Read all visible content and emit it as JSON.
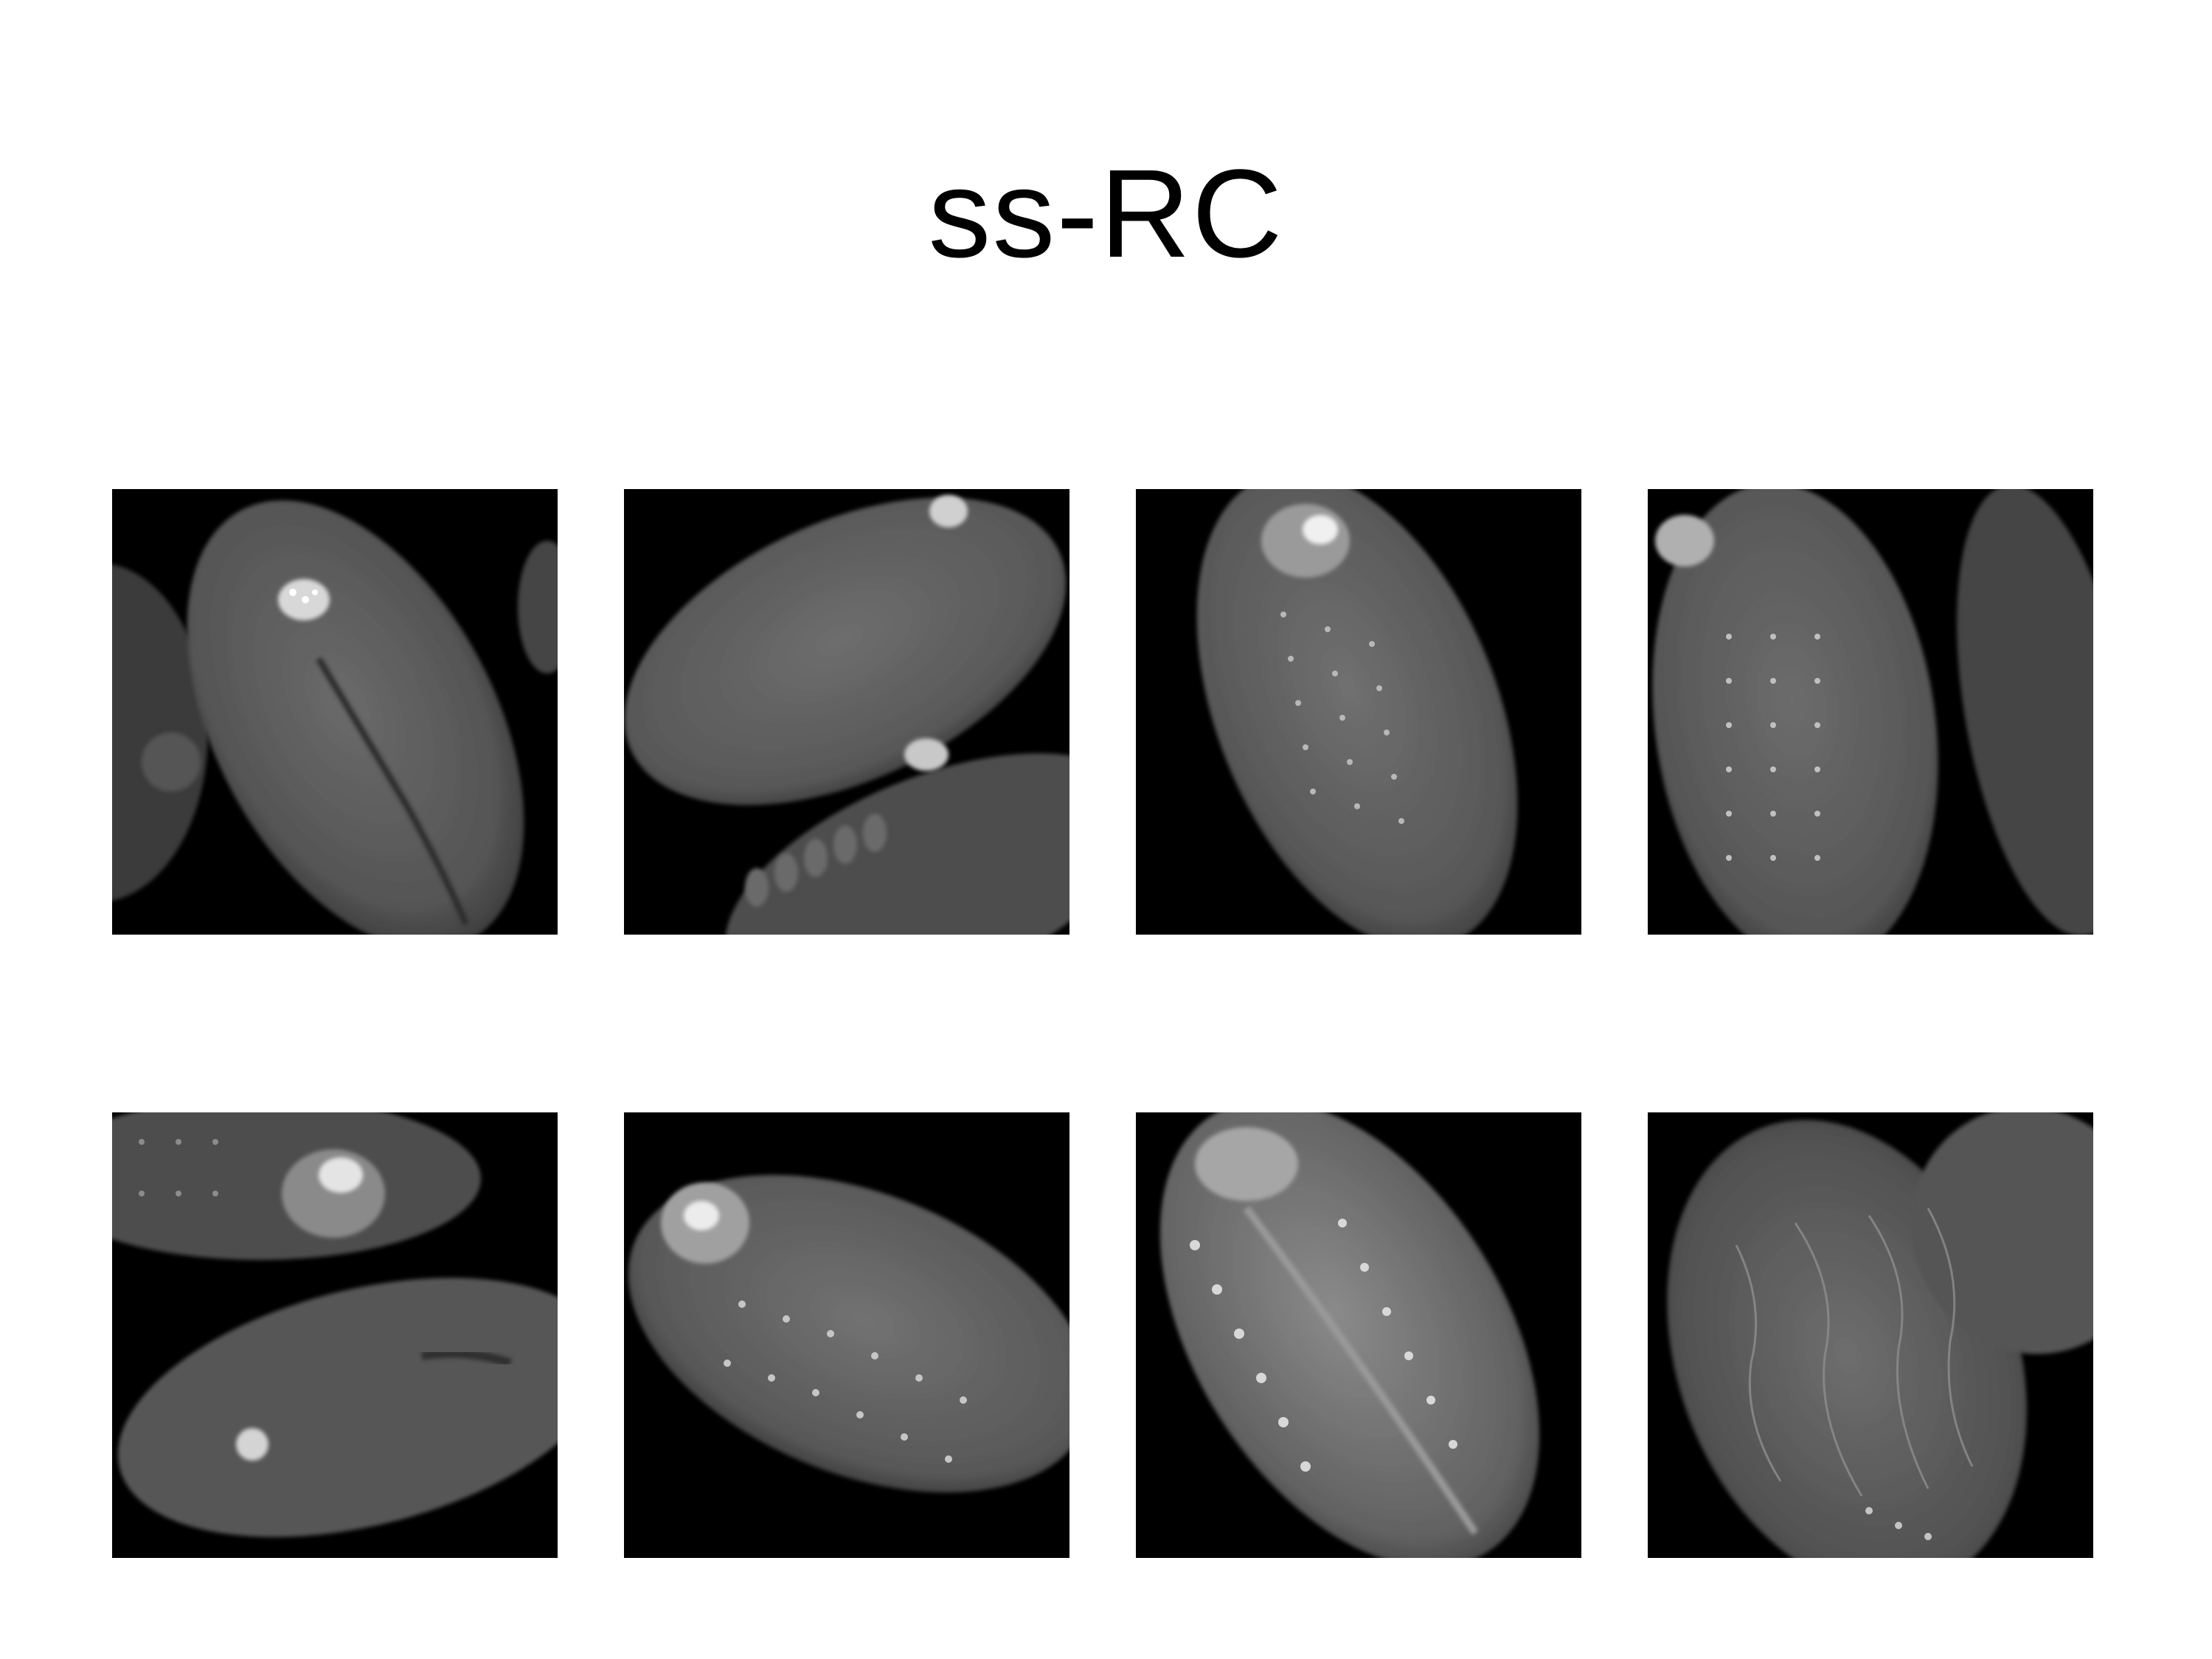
{
  "title": "ss-RC",
  "panels": [
    {
      "row": 1,
      "col": 1,
      "content": "embryo-micrograph"
    },
    {
      "row": 1,
      "col": 2,
      "content": "embryo-micrograph"
    },
    {
      "row": 1,
      "col": 3,
      "content": "embryo-micrograph"
    },
    {
      "row": 1,
      "col": 4,
      "content": "embryo-micrograph"
    },
    {
      "row": 2,
      "col": 1,
      "content": "embryo-micrograph"
    },
    {
      "row": 2,
      "col": 2,
      "content": "embryo-micrograph"
    },
    {
      "row": 2,
      "col": 3,
      "content": "embryo-micrograph"
    },
    {
      "row": 2,
      "col": 4,
      "content": "embryo-micrograph"
    }
  ],
  "colors": {
    "background": "#ffffff",
    "panel_background": "#000000",
    "tissue": "#5a5a5a",
    "highlight": "#e8e8e8"
  }
}
